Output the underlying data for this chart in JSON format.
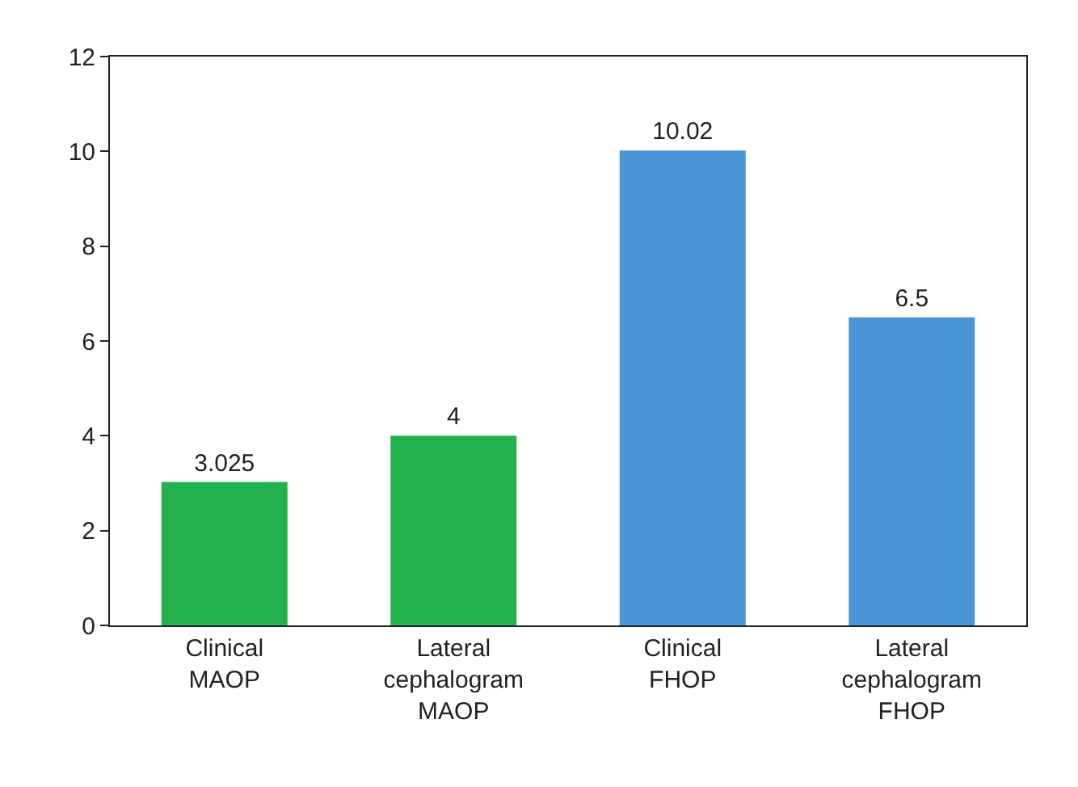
{
  "chart_data": {
    "type": "bar",
    "categories": [
      "Clinical MAOP",
      "Lateral cephalogram MAOP",
      "Clinical FHOP",
      "Lateral cephalogram FHOP"
    ],
    "values": [
      3.025,
      4,
      10.02,
      6.5
    ],
    "colors": [
      "#22b14c",
      "#22b14c",
      "#4a96d6",
      "#4a96d6"
    ],
    "ylim": [
      0,
      12
    ],
    "yticks": [
      0,
      2,
      4,
      6,
      8,
      10,
      12
    ],
    "data_labels": true
  }
}
